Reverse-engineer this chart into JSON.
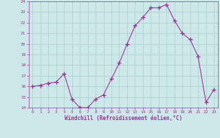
{
  "x": [
    0,
    1,
    2,
    3,
    4,
    5,
    6,
    7,
    8,
    9,
    10,
    11,
    12,
    13,
    14,
    15,
    16,
    17,
    18,
    19,
    20,
    21,
    22,
    23
  ],
  "y": [
    16.0,
    16.1,
    16.3,
    16.4,
    17.2,
    14.8,
    14.0,
    14.0,
    14.8,
    15.2,
    16.7,
    18.2,
    20.0,
    21.7,
    22.5,
    23.4,
    23.4,
    23.7,
    22.2,
    21.0,
    20.4,
    18.8,
    14.5,
    15.7
  ],
  "line_color": "#993399",
  "marker": "+",
  "marker_color": "#993399",
  "bg_color": "#cce8e8",
  "grid_color": "#aacccc",
  "xlabel": "Windchill (Refroidissement éolien,°C)",
  "xlabel_color": "#993399",
  "tick_color": "#993399",
  "ylim": [
    14,
    24
  ],
  "xlim_min": -0.5,
  "xlim_max": 23.5,
  "yticks": [
    14,
    15,
    16,
    17,
    18,
    19,
    20,
    21,
    22,
    23,
    24
  ],
  "xticks": [
    0,
    1,
    2,
    3,
    4,
    5,
    6,
    7,
    8,
    9,
    10,
    11,
    12,
    13,
    14,
    15,
    16,
    17,
    18,
    19,
    20,
    21,
    22,
    23
  ]
}
